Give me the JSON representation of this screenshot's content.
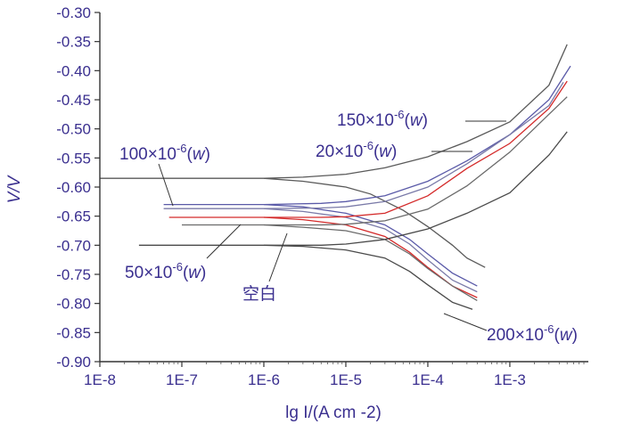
{
  "chart_data": {
    "type": "line",
    "title": "",
    "xlabel": "lg I/(A cm -2)",
    "ylabel": "V/V",
    "x_scale": "log",
    "xlim": [
      1e-08,
      0.008
    ],
    "ylim": [
      -0.9,
      -0.3
    ],
    "y_ticks": [
      "-0.30",
      "-0.35",
      "-0.40",
      "-0.45",
      "-0.50",
      "-0.55",
      "-0.60",
      "-0.65",
      "-0.70",
      "-0.75",
      "-0.80",
      "-0.85",
      "-0.90"
    ],
    "x_ticks": [
      "1E-8",
      "1E-7",
      "1E-6",
      "1E-5",
      "1E-4",
      "1E-3"
    ],
    "grid": false,
    "legend": "none",
    "annotations": [
      {
        "base": "150×10",
        "exp": "-6",
        "tail": "(",
        "italic": "w",
        "close": ")"
      },
      {
        "base": "20×10",
        "exp": "-6",
        "tail": "(",
        "italic": "w",
        "close": ")"
      },
      {
        "base": "100×10",
        "exp": "-6",
        "tail": "(",
        "italic": "w",
        "close": ")"
      },
      {
        "base": "50×10",
        "exp": "-6",
        "tail": "(",
        "italic": "w",
        "close": ")"
      },
      {
        "base": "空白"
      },
      {
        "base": "200×10",
        "exp": "-6",
        "tail": "(",
        "italic": "w",
        "close": ")"
      }
    ],
    "series": [
      {
        "color": "#5a5a5a",
        "anodic": [
          [
            1e-08,
            -0.585
          ],
          [
            1e-07,
            -0.585
          ],
          [
            1e-06,
            -0.585
          ],
          [
            3e-06,
            -0.583
          ],
          [
            1e-05,
            -0.578
          ],
          [
            3e-05,
            -0.567
          ],
          [
            0.0001,
            -0.548
          ],
          [
            0.0003,
            -0.522
          ],
          [
            0.001,
            -0.488
          ],
          [
            0.003,
            -0.425
          ],
          [
            0.005,
            -0.355
          ]
        ],
        "cathodic": [
          [
            1e-06,
            -0.585
          ],
          [
            3e-06,
            -0.59
          ],
          [
            1e-05,
            -0.6
          ],
          [
            2e-05,
            -0.612
          ],
          [
            5e-05,
            -0.64
          ],
          [
            0.0001,
            -0.668
          ],
          [
            0.0002,
            -0.7
          ],
          [
            0.0003,
            -0.722
          ],
          [
            0.0005,
            -0.738
          ]
        ]
      },
      {
        "color": "#5a5aa8",
        "anodic": [
          [
            6e-08,
            -0.63
          ],
          [
            1e-07,
            -0.63
          ],
          [
            1e-06,
            -0.63
          ],
          [
            5e-06,
            -0.628
          ],
          [
            1e-05,
            -0.625
          ],
          [
            3e-05,
            -0.615
          ],
          [
            0.0001,
            -0.59
          ],
          [
            0.0003,
            -0.555
          ],
          [
            0.001,
            -0.51
          ],
          [
            0.003,
            -0.45
          ],
          [
            0.0055,
            -0.392
          ]
        ],
        "cathodic": [
          [
            1e-06,
            -0.63
          ],
          [
            3e-06,
            -0.634
          ],
          [
            1e-05,
            -0.645
          ],
          [
            3e-05,
            -0.665
          ],
          [
            6e-05,
            -0.69
          ],
          [
            0.0001,
            -0.715
          ],
          [
            0.0002,
            -0.748
          ],
          [
            0.0004,
            -0.77
          ]
        ]
      },
      {
        "color": "#7a7aa8",
        "anodic": [
          [
            6e-08,
            -0.637
          ],
          [
            1e-07,
            -0.637
          ],
          [
            1e-06,
            -0.637
          ],
          [
            5e-06,
            -0.636
          ],
          [
            1e-05,
            -0.634
          ],
          [
            3e-05,
            -0.625
          ],
          [
            0.0001,
            -0.6
          ],
          [
            0.0003,
            -0.56
          ],
          [
            0.001,
            -0.51
          ],
          [
            0.003,
            -0.46
          ],
          [
            0.0045,
            -0.42
          ]
        ],
        "cathodic": [
          [
            1e-06,
            -0.637
          ],
          [
            3e-06,
            -0.642
          ],
          [
            1e-05,
            -0.652
          ],
          [
            3e-05,
            -0.672
          ],
          [
            6e-05,
            -0.698
          ],
          [
            0.0001,
            -0.725
          ],
          [
            0.0002,
            -0.76
          ],
          [
            0.0004,
            -0.78
          ]
        ]
      },
      {
        "color": "#d42a2a",
        "anodic": [
          [
            7e-08,
            -0.652
          ],
          [
            1e-07,
            -0.652
          ],
          [
            1e-06,
            -0.652
          ],
          [
            5e-06,
            -0.652
          ],
          [
            1e-05,
            -0.651
          ],
          [
            3e-05,
            -0.645
          ],
          [
            0.0001,
            -0.615
          ],
          [
            0.0003,
            -0.568
          ],
          [
            0.001,
            -0.525
          ],
          [
            0.003,
            -0.465
          ],
          [
            0.005,
            -0.418
          ]
        ],
        "cathodic": [
          [
            1e-06,
            -0.652
          ],
          [
            3e-06,
            -0.656
          ],
          [
            1e-05,
            -0.665
          ],
          [
            3e-05,
            -0.685
          ],
          [
            6e-05,
            -0.712
          ],
          [
            0.0001,
            -0.738
          ],
          [
            0.0002,
            -0.77
          ],
          [
            0.0004,
            -0.79
          ]
        ]
      },
      {
        "color": "#6a6a6a",
        "anodic": [
          [
            1e-07,
            -0.665
          ],
          [
            1e-06,
            -0.665
          ],
          [
            5e-06,
            -0.665
          ],
          [
            1e-05,
            -0.664
          ],
          [
            3e-05,
            -0.658
          ],
          [
            0.0001,
            -0.638
          ],
          [
            0.0003,
            -0.598
          ],
          [
            0.001,
            -0.54
          ],
          [
            0.003,
            -0.475
          ],
          [
            0.005,
            -0.445
          ]
        ],
        "cathodic": [
          [
            1e-06,
            -0.665
          ],
          [
            3e-06,
            -0.669
          ],
          [
            1e-05,
            -0.675
          ],
          [
            3e-05,
            -0.69
          ],
          [
            6e-05,
            -0.715
          ],
          [
            0.0001,
            -0.74
          ],
          [
            0.0002,
            -0.77
          ],
          [
            0.0004,
            -0.795
          ]
        ]
      },
      {
        "color": "#4a4a4a",
        "anodic": [
          [
            3e-08,
            -0.7
          ],
          [
            1e-07,
            -0.7
          ],
          [
            1e-06,
            -0.7
          ],
          [
            5e-06,
            -0.7
          ],
          [
            1e-05,
            -0.698
          ],
          [
            3e-05,
            -0.69
          ],
          [
            0.0001,
            -0.672
          ],
          [
            0.0003,
            -0.645
          ],
          [
            0.001,
            -0.61
          ],
          [
            0.003,
            -0.545
          ],
          [
            0.005,
            -0.505
          ]
        ],
        "cathodic": [
          [
            1e-06,
            -0.7
          ],
          [
            3e-06,
            -0.702
          ],
          [
            1e-05,
            -0.708
          ],
          [
            3e-05,
            -0.722
          ],
          [
            6e-05,
            -0.745
          ],
          [
            0.0001,
            -0.768
          ],
          [
            0.0002,
            -0.798
          ],
          [
            0.00035,
            -0.81
          ]
        ]
      }
    ]
  }
}
